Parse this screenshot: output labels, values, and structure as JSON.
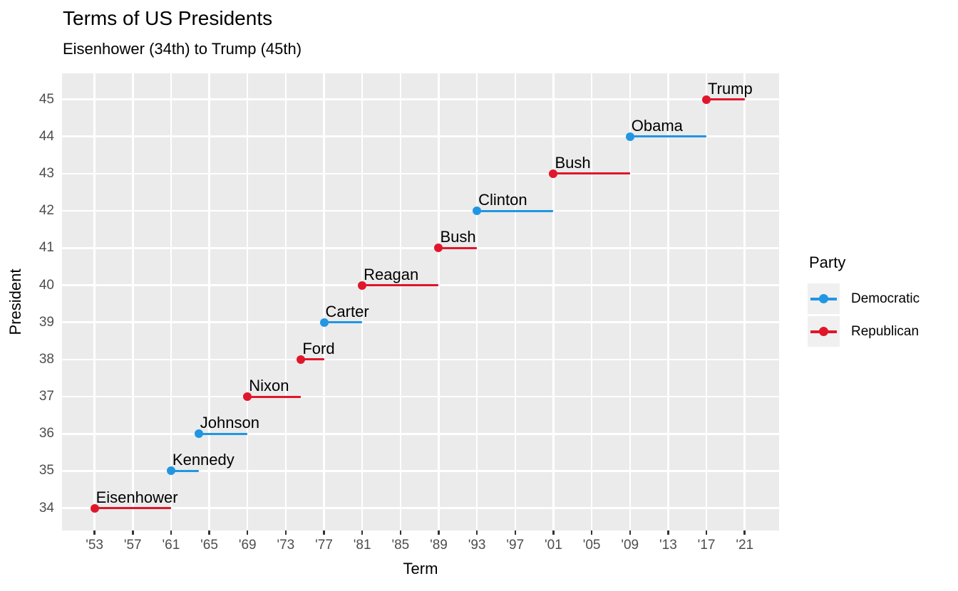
{
  "chart_data": {
    "type": "scatter",
    "variant": "segment-dumbbell",
    "title": "Terms of US Presidents",
    "subtitle": "Eisenhower (34th) to Trump (45th)",
    "xlabel": "Term",
    "ylabel": "President",
    "xlim": [
      1949.6,
      2024.6
    ],
    "ylim": [
      33.4,
      45.7
    ],
    "grid": "major-only, white on gray panel",
    "panel_bg": "#EBEBEB",
    "grid_color": "#FFFFFF",
    "axis_text_color": "#4D4D4D",
    "x_ticks": [
      {
        "label": "'53",
        "year": 1953
      },
      {
        "label": "'57",
        "year": 1957
      },
      {
        "label": "'61",
        "year": 1961
      },
      {
        "label": "'65",
        "year": 1965
      },
      {
        "label": "'69",
        "year": 1969
      },
      {
        "label": "'73",
        "year": 1973
      },
      {
        "label": "'77",
        "year": 1977
      },
      {
        "label": "'81",
        "year": 1981
      },
      {
        "label": "'85",
        "year": 1985
      },
      {
        "label": "'89",
        "year": 1989
      },
      {
        "label": "'93",
        "year": 1993
      },
      {
        "label": "'97",
        "year": 1997
      },
      {
        "label": "'01",
        "year": 2001
      },
      {
        "label": "'05",
        "year": 2005
      },
      {
        "label": "'09",
        "year": 2009
      },
      {
        "label": "'13",
        "year": 2013
      },
      {
        "label": "'17",
        "year": 2017
      },
      {
        "label": "'21",
        "year": 2021
      }
    ],
    "y_ticks": [
      34,
      35,
      36,
      37,
      38,
      39,
      40,
      41,
      42,
      43,
      44,
      45
    ],
    "legend": {
      "title": "Party",
      "position": "right",
      "entries": [
        {
          "label": "Democratic",
          "color": "#2196E3"
        },
        {
          "label": "Republican",
          "color": "#E0162B"
        }
      ]
    },
    "presidents": [
      {
        "number": 34,
        "name": "Eisenhower",
        "party": "Republican",
        "start": 1953,
        "end": 1961
      },
      {
        "number": 35,
        "name": "Kennedy",
        "party": "Democratic",
        "start": 1961,
        "end": 1963.9
      },
      {
        "number": 36,
        "name": "Johnson",
        "party": "Democratic",
        "start": 1963.9,
        "end": 1969
      },
      {
        "number": 37,
        "name": "Nixon",
        "party": "Republican",
        "start": 1969,
        "end": 1974.6
      },
      {
        "number": 38,
        "name": "Ford",
        "party": "Republican",
        "start": 1974.6,
        "end": 1977
      },
      {
        "number": 39,
        "name": "Carter",
        "party": "Democratic",
        "start": 1977,
        "end": 1981
      },
      {
        "number": 40,
        "name": "Reagan",
        "party": "Republican",
        "start": 1981,
        "end": 1989
      },
      {
        "number": 41,
        "name": "Bush",
        "party": "Republican",
        "start": 1989,
        "end": 1993
      },
      {
        "number": 42,
        "name": "Clinton",
        "party": "Democratic",
        "start": 1993,
        "end": 2001
      },
      {
        "number": 43,
        "name": "Bush",
        "party": "Republican",
        "start": 2001,
        "end": 2009
      },
      {
        "number": 44,
        "name": "Obama",
        "party": "Democratic",
        "start": 2009,
        "end": 2017
      },
      {
        "number": 45,
        "name": "Trump",
        "party": "Republican",
        "start": 2017,
        "end": 2021
      }
    ]
  }
}
